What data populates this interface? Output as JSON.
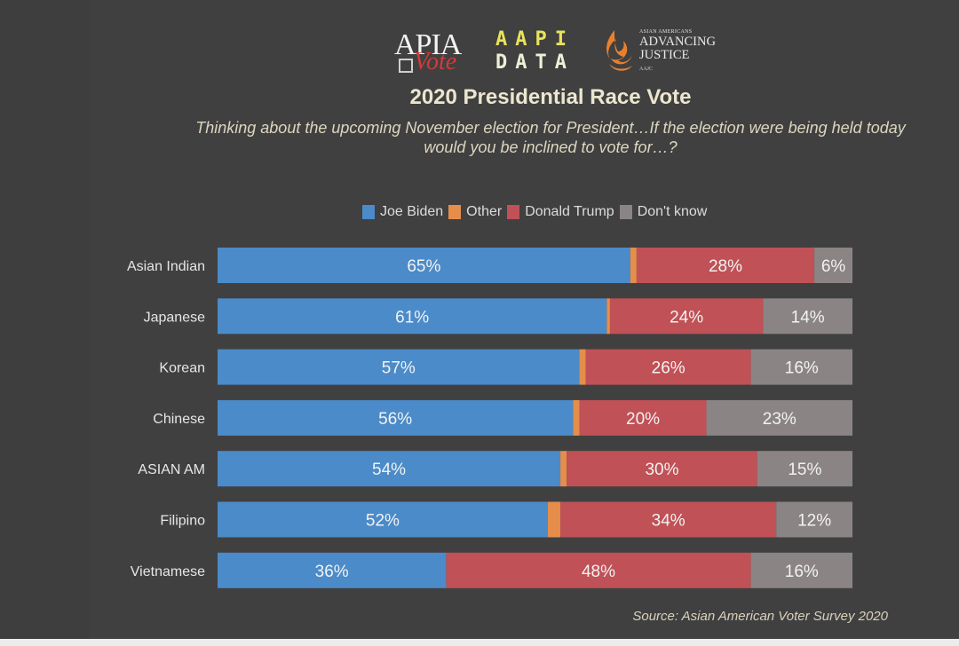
{
  "logos": {
    "apia": {
      "top": "APIA",
      "bottom": "Vote"
    },
    "aapi": {
      "line1": "AAPI",
      "line2": "DATA"
    },
    "aajc": {
      "small": "ASIAN AMERICANS",
      "line1": "ADVANCING",
      "line2": "JUSTICE",
      "tiny": "AAJC"
    }
  },
  "colors": {
    "background": "#404040",
    "biden": "#4b8bc9",
    "other": "#e58e4b",
    "trump": "#c05156",
    "dont_know": "#8a8584"
  },
  "chart_data": {
    "type": "bar",
    "orientation": "horizontal",
    "stacked": true,
    "title": "2020 Presidential Race Vote",
    "subtitle": "Thinking about the upcoming November election for President…If the election were being held today would you be inclined to vote for…?",
    "xlabel": "",
    "ylabel": "",
    "xlim": [
      0,
      100
    ],
    "grid": false,
    "legend_position": "top-center",
    "categories": [
      "Asian Indian",
      "Japanese",
      "Korean",
      "Chinese",
      "ASIAN AM",
      "Filipino",
      "Vietnamese"
    ],
    "series": [
      {
        "name": "Joe Biden",
        "color": "#4b8bc9",
        "values": [
          65,
          61,
          57,
          56,
          54,
          52,
          36
        ],
        "labels": [
          "65%",
          "61%",
          "57%",
          "56%",
          "54%",
          "52%",
          "36%"
        ]
      },
      {
        "name": "Other",
        "color": "#e58e4b",
        "values": [
          1,
          0.5,
          1,
          1,
          1,
          2,
          0
        ],
        "labels": [
          "",
          "",
          "",
          "",
          "",
          "",
          ""
        ]
      },
      {
        "name": "Donald Trump",
        "color": "#c05156",
        "values": [
          28,
          24,
          26,
          20,
          30,
          34,
          48
        ],
        "labels": [
          "28%",
          "24%",
          "26%",
          "20%",
          "30%",
          "34%",
          "48%"
        ]
      },
      {
        "name": "Don't know",
        "color": "#8a8584",
        "values": [
          6,
          14,
          16,
          23,
          15,
          12,
          16
        ],
        "labels": [
          "6%",
          "14%",
          "16%",
          "23%",
          "15%",
          "12%",
          "16%"
        ]
      }
    ],
    "source": "Source: Asian American Voter Survey 2020"
  }
}
